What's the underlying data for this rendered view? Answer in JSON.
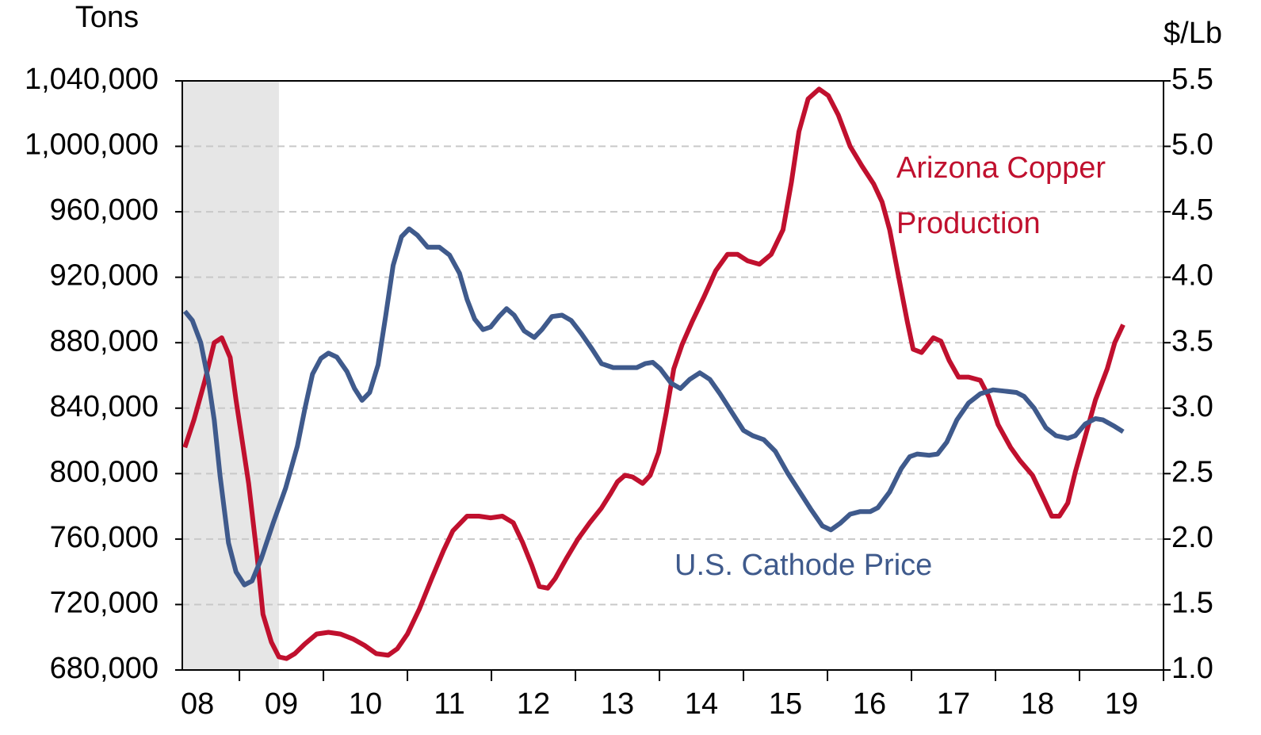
{
  "chart_data": {
    "type": "line",
    "y_label": "Tons",
    "y2_label": "$/Lb",
    "xlim": [
      2008.32,
      2020
    ],
    "xticks": [
      {
        "value": 2008.5,
        "label": "08"
      },
      {
        "value": 2009.5,
        "label": "09"
      },
      {
        "value": 2010.5,
        "label": "10"
      },
      {
        "value": 2011.5,
        "label": "11"
      },
      {
        "value": 2012.5,
        "label": "12"
      },
      {
        "value": 2013.5,
        "label": "13"
      },
      {
        "value": 2014.5,
        "label": "14"
      },
      {
        "value": 2015.5,
        "label": "15"
      },
      {
        "value": 2016.5,
        "label": "16"
      },
      {
        "value": 2017.5,
        "label": "17"
      },
      {
        "value": 2018.5,
        "label": "18"
      },
      {
        "value": 2019.5,
        "label": "19"
      }
    ],
    "ylim": [
      680000,
      1040000
    ],
    "yticks": [
      {
        "value": 680000,
        "label": "680,000"
      },
      {
        "value": 720000,
        "label": "720,000"
      },
      {
        "value": 760000,
        "label": "760,000"
      },
      {
        "value": 800000,
        "label": "800,000"
      },
      {
        "value": 840000,
        "label": "840,000"
      },
      {
        "value": 880000,
        "label": "880,000"
      },
      {
        "value": 920000,
        "label": "920,000"
      },
      {
        "value": 960000,
        "label": "960,000"
      },
      {
        "value": 1000000,
        "label": "1,000,000"
      },
      {
        "value": 1040000,
        "label": "1,040,000"
      }
    ],
    "y2lim": [
      1.0,
      5.5
    ],
    "y2ticks": [
      {
        "value": 1.0,
        "label": "1.0"
      },
      1.5,
      {
        "value": 2.0,
        "label": "2.0"
      },
      2.5,
      {
        "value": 3.0,
        "label": "3.0"
      },
      3.5,
      {
        "value": 4.0,
        "label": "4.0"
      },
      4.5,
      {
        "value": 5.0,
        "label": "5.0"
      },
      5.5
    ],
    "grid": true,
    "shade": [
      2008.32,
      2009.47
    ],
    "series": [
      {
        "name": "Arizona Copper\nProduction",
        "color": "#c0102e",
        "axis": "y",
        "x": [
          2008.35,
          2008.46,
          2008.59,
          2008.7,
          2008.79,
          2008.89,
          2008.96,
          2009.11,
          2009.21,
          2009.28,
          2009.38,
          2009.47,
          2009.56,
          2009.66,
          2009.78,
          2009.92,
          2010.06,
          2010.2,
          2010.35,
          2010.49,
          2010.63,
          2010.77,
          2010.88,
          2011.0,
          2011.14,
          2011.29,
          2011.43,
          2011.54,
          2011.71,
          2011.85,
          2011.99,
          2012.13,
          2012.26,
          2012.37,
          2012.48,
          2012.57,
          2012.67,
          2012.76,
          2012.89,
          2013.03,
          2013.17,
          2013.31,
          2013.42,
          2013.5,
          2013.59,
          2013.68,
          2013.8,
          2013.89,
          2013.99,
          2014.08,
          2014.17,
          2014.27,
          2014.39,
          2014.53,
          2014.67,
          2014.81,
          2014.93,
          2015.05,
          2015.19,
          2015.33,
          2015.47,
          2015.57,
          2015.66,
          2015.77,
          2015.9,
          2016.01,
          2016.13,
          2016.27,
          2016.41,
          2016.55,
          2016.65,
          2016.74,
          2016.84,
          2016.95,
          2017.02,
          2017.12,
          2017.26,
          2017.35,
          2017.45,
          2017.56,
          2017.68,
          2017.82,
          2017.92,
          2018.03,
          2018.18,
          2018.29,
          2018.44,
          2018.58,
          2018.67,
          2018.76,
          2018.86,
          2018.95,
          2019.07,
          2019.19,
          2019.33,
          2019.42,
          2019.52
        ],
        "values": [
          816000,
          833000,
          857000,
          880000,
          883000,
          871000,
          845000,
          794000,
          750000,
          714000,
          697000,
          688000,
          687000,
          690000,
          696000,
          702000,
          703000,
          702000,
          699000,
          695000,
          690000,
          689000,
          693000,
          702000,
          717000,
          736000,
          753000,
          765000,
          774000,
          774000,
          773000,
          774000,
          770000,
          758000,
          744000,
          731000,
          730000,
          736000,
          748000,
          760000,
          770000,
          779000,
          788000,
          795000,
          799000,
          798000,
          794000,
          799000,
          813000,
          837000,
          864000,
          879000,
          893000,
          908000,
          924000,
          934000,
          934000,
          930000,
          928000,
          934000,
          949000,
          978000,
          1009000,
          1029000,
          1035000,
          1031000,
          1019000,
          1000000,
          988000,
          977000,
          966000,
          949000,
          922000,
          893000,
          876000,
          874000,
          883000,
          881000,
          869000,
          859000,
          859000,
          857000,
          847000,
          830000,
          816000,
          808000,
          799000,
          784000,
          774000,
          774000,
          782000,
          801000,
          823000,
          845000,
          864000,
          880000,
          891000
        ]
      },
      {
        "name": "U.S. Cathode Price",
        "color": "#3f5a8c",
        "axis": "y2",
        "x": [
          2008.35,
          2008.44,
          2008.54,
          2008.63,
          2008.7,
          2008.77,
          2008.87,
          2008.96,
          2009.06,
          2009.15,
          2009.26,
          2009.4,
          2009.55,
          2009.69,
          2009.78,
          2009.87,
          2009.97,
          2010.06,
          2010.16,
          2010.28,
          2010.37,
          2010.46,
          2010.55,
          2010.65,
          2010.74,
          2010.83,
          2010.93,
          2011.02,
          2011.12,
          2011.24,
          2011.38,
          2011.5,
          2011.62,
          2011.71,
          2011.8,
          2011.9,
          2011.99,
          2012.09,
          2012.18,
          2012.27,
          2012.39,
          2012.51,
          2012.6,
          2012.72,
          2012.84,
          2012.95,
          2013.07,
          2013.2,
          2013.31,
          2013.45,
          2013.59,
          2013.73,
          2013.83,
          2013.92,
          2014.01,
          2014.14,
          2014.25,
          2014.36,
          2014.48,
          2014.6,
          2014.72,
          2014.86,
          2015.0,
          2015.11,
          2015.24,
          2015.38,
          2015.52,
          2015.68,
          2015.8,
          2015.94,
          2016.04,
          2016.15,
          2016.27,
          2016.39,
          2016.51,
          2016.6,
          2016.74,
          2016.88,
          2016.98,
          2017.07,
          2017.21,
          2017.31,
          2017.42,
          2017.54,
          2017.68,
          2017.82,
          2017.97,
          2018.11,
          2018.25,
          2018.34,
          2018.46,
          2018.6,
          2018.72,
          2018.86,
          2018.95,
          2019.07,
          2019.19,
          2019.28,
          2019.42,
          2019.52
        ],
        "values": [
          3.74,
          3.67,
          3.5,
          3.21,
          2.91,
          2.48,
          1.97,
          1.75,
          1.65,
          1.68,
          1.85,
          2.12,
          2.39,
          2.71,
          3.0,
          3.26,
          3.38,
          3.42,
          3.39,
          3.28,
          3.15,
          3.06,
          3.12,
          3.33,
          3.7,
          4.09,
          4.31,
          4.37,
          4.32,
          4.23,
          4.23,
          4.17,
          4.03,
          3.83,
          3.68,
          3.6,
          3.62,
          3.7,
          3.76,
          3.71,
          3.59,
          3.54,
          3.6,
          3.7,
          3.71,
          3.67,
          3.57,
          3.45,
          3.34,
          3.31,
          3.31,
          3.31,
          3.34,
          3.35,
          3.3,
          3.19,
          3.15,
          3.22,
          3.27,
          3.22,
          3.11,
          2.97,
          2.83,
          2.79,
          2.76,
          2.67,
          2.51,
          2.35,
          2.23,
          2.1,
          2.07,
          2.12,
          2.19,
          2.21,
          2.21,
          2.24,
          2.36,
          2.54,
          2.63,
          2.65,
          2.64,
          2.65,
          2.74,
          2.91,
          3.04,
          3.11,
          3.14,
          3.13,
          3.12,
          3.09,
          3.0,
          2.85,
          2.79,
          2.77,
          2.79,
          2.88,
          2.92,
          2.91,
          2.86,
          2.82
        ]
      }
    ]
  }
}
